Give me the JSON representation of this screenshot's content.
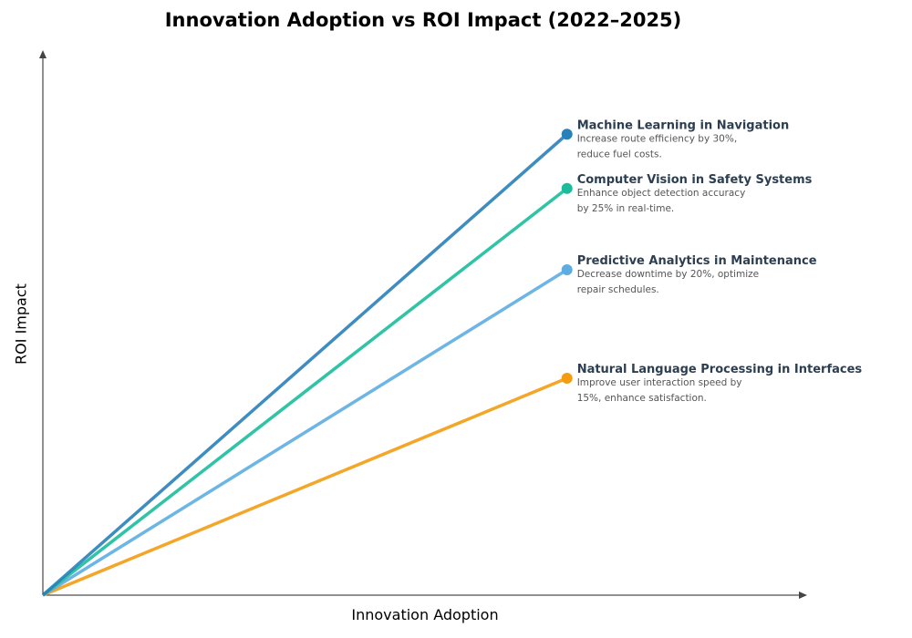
{
  "chart_data": {
    "type": "line",
    "title": "Innovation Adoption vs ROI Impact (2022–2025)",
    "xlabel": "Innovation Adoption",
    "ylabel": "ROI Impact",
    "xlim": [
      0,
      1
    ],
    "ylim": [
      0,
      1
    ],
    "grid": false,
    "ticks": "none",
    "series": [
      {
        "name": "Machine Learning in Navigation",
        "description_lines": [
          "Increase route efficiency by 30%,",
          "reduce fuel costs."
        ],
        "x": [
          0,
          0.7
        ],
        "y": [
          0,
          0.85
        ],
        "color": "#2980b9"
      },
      {
        "name": "Computer Vision in Safety Systems",
        "description_lines": [
          "Enhance object detection accuracy",
          "by 25% in real-time."
        ],
        "x": [
          0,
          0.7
        ],
        "y": [
          0,
          0.75
        ],
        "color": "#1abc9c"
      },
      {
        "name": "Predictive Analytics in Maintenance",
        "description_lines": [
          "Decrease downtime by 20%, optimize",
          "repair schedules."
        ],
        "x": [
          0,
          0.7
        ],
        "y": [
          0,
          0.6
        ],
        "color": "#5dade2"
      },
      {
        "name": "Natural Language Processing in Interfaces",
        "description_lines": [
          "Improve user interaction speed by",
          "15%, enhance satisfaction."
        ],
        "x": [
          0,
          0.7
        ],
        "y": [
          0,
          0.4
        ],
        "color": "#f39c12"
      }
    ]
  }
}
